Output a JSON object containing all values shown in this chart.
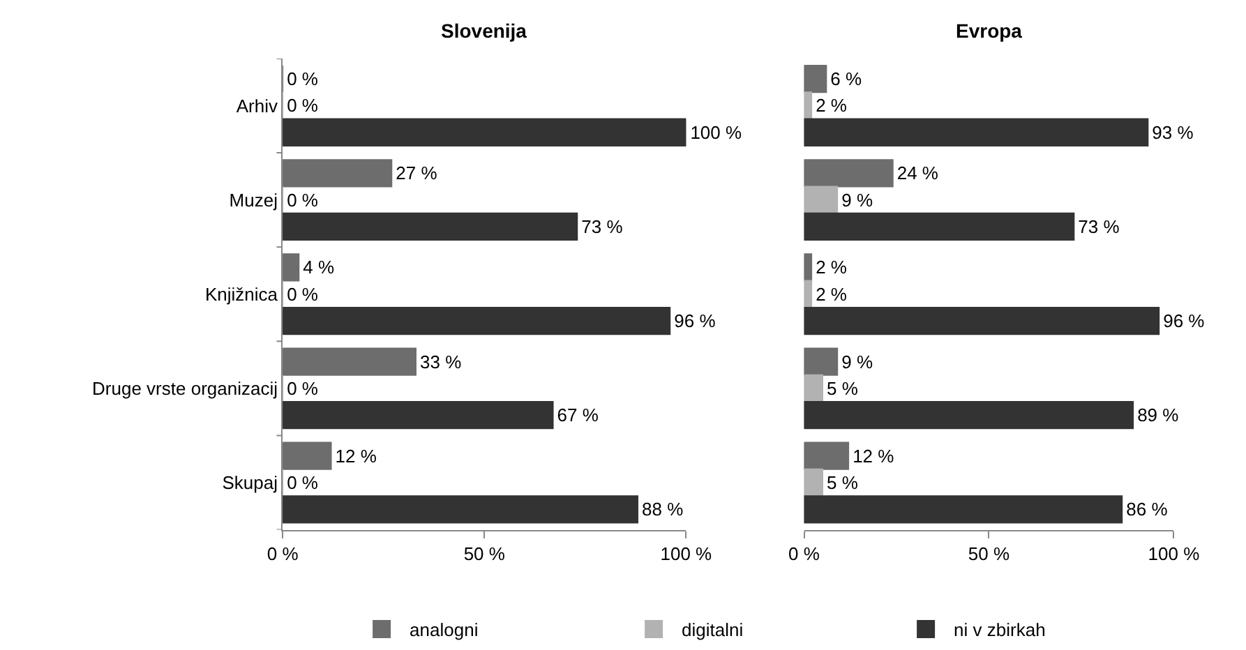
{
  "chart_data": [
    {
      "type": "bar",
      "orientation": "horizontal",
      "title": "Slovenija",
      "categories": [
        "Arhiv",
        "Muzej",
        "Knjižnica",
        "Druge vrste organizacij",
        "Skupaj"
      ],
      "series": [
        {
          "color": "#6d6d6d",
          "values": [
            0,
            27,
            4,
            33,
            12
          ],
          "value_labels": [
            "0 %",
            "27 %",
            "4 %",
            "33 %",
            "12 %"
          ]
        },
        {
          "color": "#b2b2b2",
          "values": [
            0,
            0,
            0,
            0,
            0
          ],
          "value_labels": [
            "0 %",
            "0 %",
            "0 %",
            "0 %",
            "0 %"
          ]
        },
        {
          "color": "#333333",
          "values": [
            100,
            73,
            96,
            67,
            88
          ],
          "value_labels": [
            "100 %",
            "73 %",
            "96 %",
            "67 %",
            "88 %"
          ]
        }
      ],
      "xlim": [
        0,
        100
      ],
      "xticks": [
        {
          "value": 0,
          "label": "0 %"
        },
        {
          "value": 50,
          "label": "50 %"
        },
        {
          "value": 100,
          "label": "100 %"
        }
      ]
    },
    {
      "type": "bar",
      "orientation": "horizontal",
      "title": "Evropa",
      "categories": [
        null,
        null,
        null,
        null,
        null
      ],
      "series": [
        {
          "name": "analogni",
          "color": "#6d6d6d",
          "values": [
            6,
            24,
            2,
            9,
            12
          ],
          "value_labels": [
            "6 %",
            "24 %",
            "2 %",
            "9 %",
            "12 %"
          ]
        },
        {
          "name": "digitalni",
          "color": "#b2b2b2",
          "values": [
            2,
            9,
            2,
            5,
            5
          ],
          "value_labels": [
            "2 %",
            "9 %",
            "2 %",
            "5 %",
            "5 %"
          ]
        },
        {
          "name": "ni v zbirkah",
          "color": "#333333",
          "values": [
            93,
            73,
            96,
            89,
            86
          ],
          "value_labels": [
            "93 %",
            "73 %",
            "96 %",
            "89 %",
            "86 %"
          ]
        }
      ],
      "xlim": [
        0,
        100
      ],
      "xticks": [
        {
          "value": 0,
          "label": "0 %"
        },
        {
          "value": 50,
          "label": "50 %"
        },
        {
          "value": 100,
          "label": "100 %"
        }
      ],
      "tick_labels": "x",
      "legend": "bottom"
    }
  ]
}
